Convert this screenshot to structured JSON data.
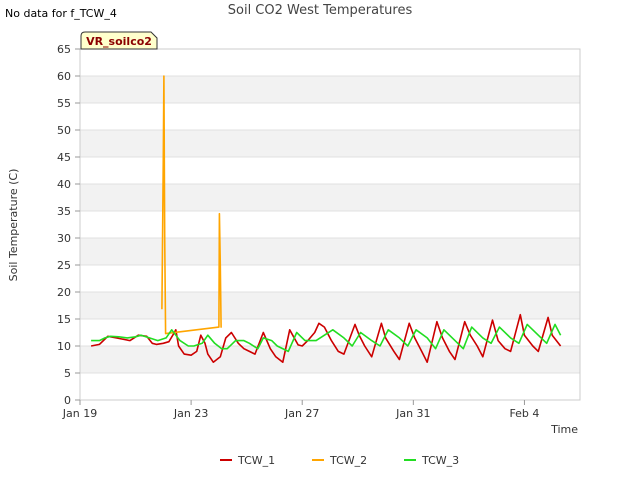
{
  "header": {
    "no_data_note": "No data for f_TCW_4",
    "badge": "VR_soilco2"
  },
  "chart_data": {
    "type": "line",
    "title": "Soil CO2 West Temperatures",
    "xlabel": "Time",
    "ylabel": "Soil Temperature (C)",
    "xlim_days": [
      0,
      18
    ],
    "ylim": [
      0,
      65
    ],
    "yticks": [
      0,
      5,
      10,
      15,
      20,
      25,
      30,
      35,
      40,
      45,
      50,
      55,
      60,
      65
    ],
    "xticks": [
      {
        "day": 0,
        "label": "Jan 19"
      },
      {
        "day": 4,
        "label": "Jan 23"
      },
      {
        "day": 8,
        "label": "Jan 27"
      },
      {
        "day": 12,
        "label": "Jan 31"
      },
      {
        "day": 16,
        "label": "Feb 4"
      }
    ],
    "grid": true,
    "legend_position": "bottom",
    "series": [
      {
        "name": "TCW_1",
        "color": "#cc0000",
        "x": [
          0.4,
          0.7,
          0.9,
          1.0,
          1.3,
          1.6,
          1.8,
          2.1,
          2.4,
          2.6,
          2.75,
          3.0,
          3.2,
          3.4,
          3.45,
          3.55,
          3.75,
          4.0,
          4.2,
          4.35,
          4.5,
          4.6,
          4.8,
          5.05,
          5.25,
          5.45,
          5.7,
          5.9,
          6.1,
          6.3,
          6.6,
          6.85,
          7.05,
          7.3,
          7.55,
          7.85,
          8.0,
          8.2,
          8.45,
          8.6,
          8.8,
          9.05,
          9.3,
          9.5,
          9.9,
          10.05,
          10.25,
          10.5,
          10.85,
          11.0,
          11.3,
          11.5,
          11.85,
          12.05,
          12.3,
          12.5,
          12.85,
          13.05,
          13.3,
          13.5,
          13.85,
          14.05,
          14.3,
          14.5,
          14.85,
          15.05,
          15.3,
          15.5,
          15.85,
          16.0,
          16.3,
          16.5,
          16.85,
          17.0,
          17.3
        ],
        "values": [
          10,
          10.3,
          11.3,
          11.8,
          11.5,
          11.2,
          11,
          12,
          11.8,
          10.5,
          10.3,
          10.5,
          10.8,
          12.5,
          13,
          10,
          8.5,
          8.3,
          9,
          12,
          10.5,
          8.5,
          7,
          8,
          11.5,
          12.5,
          10.5,
          9.5,
          9,
          8.5,
          12.5,
          9.5,
          8,
          7,
          13,
          10.2,
          10,
          11,
          12.5,
          14.2,
          13.5,
          11,
          9,
          8.5,
          14,
          12,
          10,
          8,
          14.2,
          11.5,
          9,
          7.5,
          14.2,
          11.5,
          9,
          7,
          14.5,
          11.5,
          9,
          7.5,
          14.5,
          12,
          10,
          8,
          14.8,
          11,
          9.5,
          9,
          15.8,
          12,
          10,
          9,
          15.3,
          12,
          10
        ]
      },
      {
        "name": "TCW_2",
        "color": "#ffa500",
        "x": [
          2.95,
          3.0,
          3.02,
          3.05,
          3.08,
          5.0,
          5.02,
          5.05,
          5.08,
          5.1
        ],
        "values": [
          16.8,
          45,
          60,
          30,
          12.3,
          13.5,
          34.5,
          25,
          13.5,
          13.5
        ]
      },
      {
        "name": "TCW_3",
        "color": "#22dd22",
        "x": [
          0.4,
          0.7,
          0.9,
          1.1,
          1.4,
          1.7,
          2.0,
          2.2,
          2.5,
          2.8,
          3.1,
          3.3,
          3.6,
          3.9,
          4.1,
          4.4,
          4.6,
          4.85,
          5.1,
          5.3,
          5.6,
          5.9,
          6.1,
          6.4,
          6.6,
          6.9,
          7.1,
          7.5,
          7.8,
          8.1,
          8.5,
          8.8,
          9.1,
          9.5,
          9.8,
          10.1,
          10.5,
          10.8,
          11.1,
          11.5,
          11.8,
          12.1,
          12.5,
          12.8,
          13.1,
          13.5,
          13.8,
          14.1,
          14.5,
          14.8,
          15.1,
          15.5,
          15.8,
          16.1,
          16.5,
          16.8,
          17.1,
          17.3
        ],
        "values": [
          11,
          11,
          11.5,
          11.8,
          11.7,
          11.5,
          11.7,
          12,
          11.5,
          11,
          11.5,
          13,
          11,
          10,
          10,
          10.5,
          12,
          10.5,
          9.5,
          9.5,
          11,
          11,
          10.5,
          9.5,
          11.5,
          11,
          10,
          9,
          12.5,
          11,
          11,
          12,
          13,
          11.5,
          10,
          12.5,
          11,
          10,
          13,
          11.5,
          10,
          13,
          11.5,
          9.5,
          13,
          11,
          9.5,
          13.5,
          11.5,
          10.5,
          13.5,
          11.5,
          10.5,
          14,
          12,
          10.5,
          14,
          12
        ]
      }
    ]
  }
}
